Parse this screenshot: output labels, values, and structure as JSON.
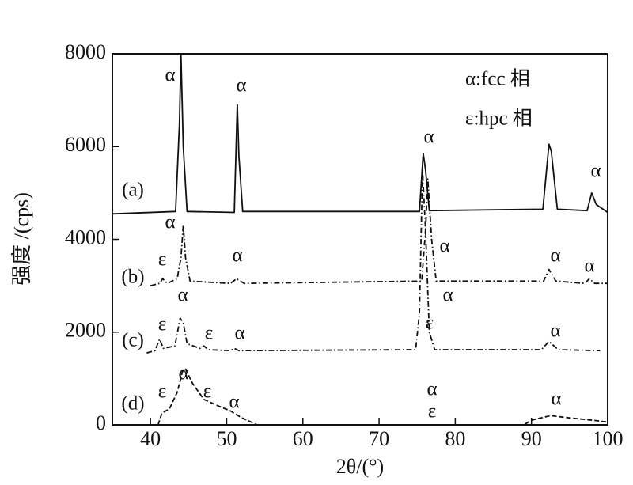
{
  "chart_data": {
    "type": "line",
    "xlabel": "2θ/(°)",
    "ylabel": "强度 /(cps)",
    "xlim": [
      35,
      100
    ],
    "ylim": [
      0,
      8000
    ],
    "xticks": [
      40,
      50,
      60,
      70,
      80,
      90,
      100
    ],
    "yticks": [
      0,
      2000,
      4000,
      6000,
      8000
    ],
    "legend_texts": [
      "α:fcc 相",
      "ε:hpc 相"
    ],
    "annotations": [
      "α",
      "α",
      "α",
      "α",
      "(a)",
      "α",
      "ε",
      "α",
      "α",
      "α",
      "α",
      "(b)",
      "α",
      "α",
      "ε",
      "ε",
      "α",
      "ε",
      "(c)",
      "α",
      "α",
      "ε",
      "ε",
      "α",
      "α",
      "ε",
      "(d)",
      "α"
    ],
    "series": [
      {
        "color": "#111",
        "dash": "none",
        "x": [
          35,
          43.3,
          43.8,
          44.0,
          44.3,
          44.8,
          51.0,
          51.4,
          51.6,
          52.1,
          75.3,
          75.8,
          76.1,
          76.6,
          91.5,
          92.3,
          92.6,
          93.4,
          97.3,
          97.9,
          98.5,
          100
        ],
        "values": [
          4550,
          4600,
          6500,
          8000,
          6000,
          4600,
          4580,
          6900,
          5800,
          4600,
          4600,
          5850,
          5500,
          4620,
          4650,
          6050,
          5900,
          4650,
          4620,
          5000,
          4750,
          4580
        ]
      },
      {
        "color": "#111",
        "dash": "7 3 1.5 3",
        "x": [
          40,
          41.2,
          41.6,
          42.2,
          43.5,
          44.0,
          44.3,
          44.6,
          45.2,
          50.5,
          51.3,
          52.3,
          75.6,
          76.1,
          76.4,
          76.9,
          77.5,
          91.6,
          92.3,
          93.2,
          97,
          97.6,
          98.3,
          100
        ],
        "values": [
          3000,
          3050,
          3150,
          3050,
          3150,
          3600,
          4300,
          3600,
          3100,
          3050,
          3150,
          3050,
          3100,
          4200,
          5300,
          4000,
          3100,
          3100,
          3350,
          3100,
          3050,
          3150,
          3050,
          3050
        ]
      },
      {
        "color": "#111",
        "dash": "7 3 1.5 3",
        "x": [
          39.5,
          40.6,
          41.2,
          41.7,
          43.2,
          43.9,
          44.3,
          44.8,
          46.5,
          47.0,
          47.6,
          50.5,
          51,
          51.6,
          74.8,
          75.3,
          75.7,
          76.1,
          76.6,
          77.3,
          91.3,
          92.3,
          93.5,
          99
        ],
        "values": [
          1550,
          1600,
          1850,
          1650,
          1700,
          2300,
          2200,
          1750,
          1650,
          1700,
          1620,
          1600,
          1650,
          1600,
          1620,
          2400,
          5500,
          4200,
          2000,
          1620,
          1620,
          1800,
          1620,
          1600
        ]
      },
      {
        "color": "#111",
        "dash": "6 3",
        "x": [
          41,
          41.5,
          42.5,
          43.5,
          44.2,
          44.6,
          45.5,
          47,
          49,
          50.5,
          52,
          54,
          89,
          90,
          92.5,
          95,
          98,
          100
        ],
        "values": [
          0,
          250,
          350,
          700,
          1150,
          1200,
          900,
          550,
          400,
          300,
          150,
          0,
          0,
          100,
          200,
          150,
          100,
          60
        ]
      }
    ]
  }
}
